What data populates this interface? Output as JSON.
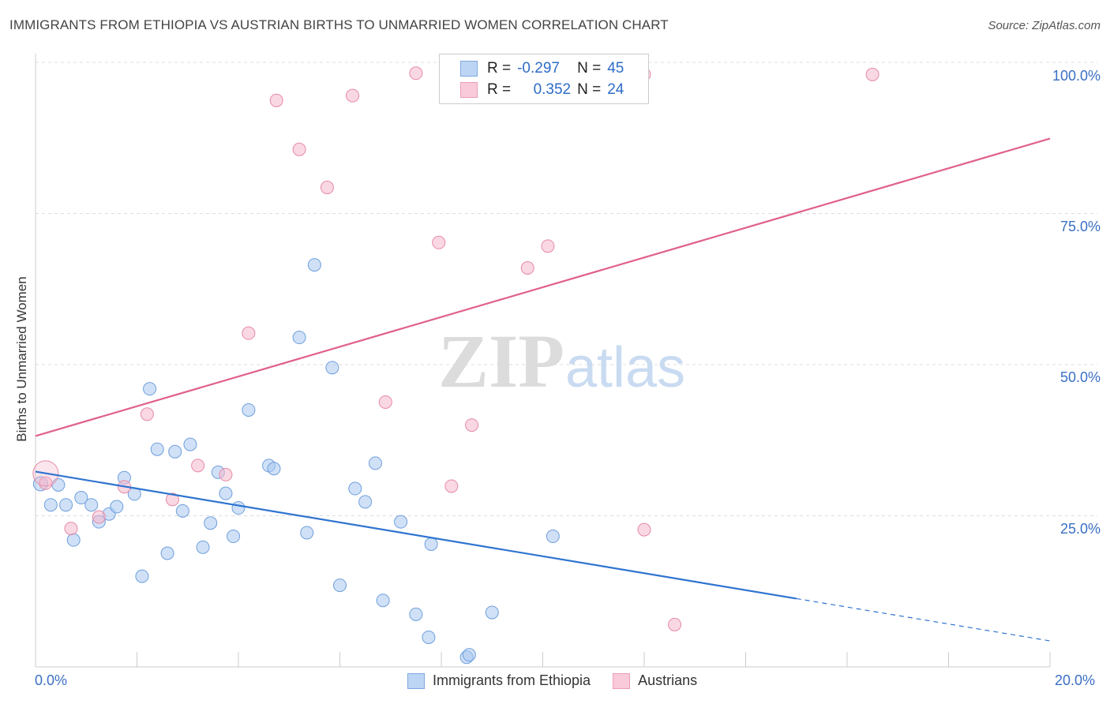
{
  "title": "IMMIGRANTS FROM ETHIOPIA VS AUSTRIAN BIRTHS TO UNMARRIED WOMEN CORRELATION CHART",
  "source": "Source: ZipAtlas.com",
  "watermark": {
    "zip": "ZIP",
    "atlas": "atlas"
  },
  "legend_top": {
    "rows": [
      {
        "r_label": "R =",
        "r_value": "-0.297",
        "n_label": "N =",
        "n_value": "45",
        "color": "#a9c8f0"
      },
      {
        "r_label": "R =",
        "r_value": "0.352",
        "n_label": "N =",
        "n_value": "24",
        "color": "#f6b8cc"
      }
    ]
  },
  "legend_bottom": {
    "items": [
      {
        "label": "Immigrants from Ethiopia",
        "color": "#a9c8f0"
      },
      {
        "label": "Austrians",
        "color": "#f6b8cc"
      }
    ]
  },
  "chart_data": {
    "type": "scatter",
    "title": "IMMIGRANTS FROM ETHIOPIA VS AUSTRIAN BIRTHS TO UNMARRIED WOMEN CORRELATION CHART",
    "xlabel": "",
    "ylabel": "Births to Unmarried Women",
    "xlim": [
      0,
      20
    ],
    "ylim": [
      0,
      100
    ],
    "x_tick_labels": [
      "0.0%",
      "20.0%"
    ],
    "y_tick_labels": [
      "100.0%",
      "75.0%",
      "50.0%",
      "25.0%"
    ],
    "y_ticks": [
      100,
      75,
      50,
      25
    ],
    "grid": true,
    "legend_position": "bottom",
    "series": [
      {
        "name": "Immigrants from Ethiopia",
        "color": "#a9c8f0",
        "stroke": "#6f9fdc",
        "trend_color": "#2f74d0",
        "trend": {
          "x0": 0,
          "y0": 32.3,
          "x1": 15.0,
          "y1": 11.3,
          "dash_to_x": 20.0,
          "dash_to_y": 4.3
        },
        "points": [
          [
            0.1,
            30.3
          ],
          [
            0.3,
            26.8
          ],
          [
            0.45,
            30.1
          ],
          [
            0.6,
            26.8
          ],
          [
            0.75,
            21.0
          ],
          [
            0.9,
            28.0
          ],
          [
            1.1,
            26.8
          ],
          [
            1.25,
            24.0
          ],
          [
            1.45,
            25.3
          ],
          [
            1.6,
            26.5
          ],
          [
            1.75,
            31.3
          ],
          [
            1.95,
            28.6
          ],
          [
            2.1,
            15.0
          ],
          [
            2.25,
            46.0
          ],
          [
            2.4,
            36.0
          ],
          [
            2.6,
            18.8
          ],
          [
            2.75,
            35.6
          ],
          [
            2.9,
            25.8
          ],
          [
            3.05,
            36.8
          ],
          [
            3.3,
            19.8
          ],
          [
            3.45,
            23.8
          ],
          [
            3.6,
            32.2
          ],
          [
            3.75,
            28.7
          ],
          [
            3.9,
            21.6
          ],
          [
            4.0,
            26.3
          ],
          [
            4.2,
            42.5
          ],
          [
            4.6,
            33.3
          ],
          [
            4.7,
            32.8
          ],
          [
            5.2,
            54.5
          ],
          [
            5.35,
            22.2
          ],
          [
            5.5,
            66.5
          ],
          [
            5.85,
            49.5
          ],
          [
            6.0,
            13.5
          ],
          [
            6.3,
            29.5
          ],
          [
            6.5,
            27.3
          ],
          [
            6.7,
            33.7
          ],
          [
            6.85,
            11.0
          ],
          [
            7.2,
            24.0
          ],
          [
            7.5,
            8.7
          ],
          [
            7.75,
            4.9
          ],
          [
            7.8,
            20.3
          ],
          [
            8.5,
            1.6
          ],
          [
            8.55,
            2.0
          ],
          [
            9.0,
            9.0
          ],
          [
            10.2,
            21.6
          ]
        ]
      },
      {
        "name": "Austrians",
        "color": "#f6b8cc",
        "stroke": "#e58aa7",
        "trend_color": "#e0608d",
        "trend": {
          "x0": 0,
          "y0": 38.2,
          "x1": 20.0,
          "y1": 87.4
        },
        "points": [
          [
            0.2,
            30.4
          ],
          [
            0.7,
            22.9
          ],
          [
            1.25,
            24.8
          ],
          [
            1.75,
            29.8
          ],
          [
            2.2,
            41.8
          ],
          [
            2.7,
            27.7
          ],
          [
            3.2,
            33.3
          ],
          [
            3.75,
            31.8
          ],
          [
            4.2,
            55.2
          ],
          [
            4.75,
            93.7
          ],
          [
            5.2,
            85.6
          ],
          [
            5.75,
            79.3
          ],
          [
            6.25,
            94.5
          ],
          [
            6.9,
            43.8
          ],
          [
            7.5,
            98.2
          ],
          [
            7.95,
            70.2
          ],
          [
            8.2,
            29.9
          ],
          [
            8.6,
            40.0
          ],
          [
            9.7,
            66.0
          ],
          [
            10.1,
            69.6
          ],
          [
            12.0,
            98.0
          ],
          [
            12.0,
            22.7
          ],
          [
            12.6,
            7.0
          ],
          [
            16.5,
            98.0
          ]
        ]
      }
    ]
  }
}
